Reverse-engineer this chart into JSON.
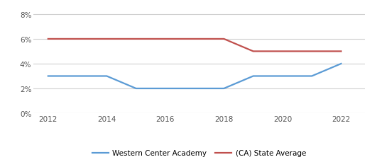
{
  "wca_years": [
    2012,
    2013,
    2014,
    2015,
    2016,
    2017,
    2018,
    2019,
    2020,
    2021,
    2022
  ],
  "wca_values": [
    0.03,
    0.03,
    0.03,
    0.02,
    0.02,
    0.02,
    0.02,
    0.03,
    0.03,
    0.03,
    0.04
  ],
  "ca_years": [
    2012,
    2013,
    2014,
    2015,
    2016,
    2017,
    2018,
    2019,
    2020,
    2021,
    2022
  ],
  "ca_values": [
    0.06,
    0.06,
    0.06,
    0.06,
    0.06,
    0.06,
    0.06,
    0.05,
    0.05,
    0.05,
    0.05
  ],
  "wca_color": "#5b9bd5",
  "ca_color": "#c0504d",
  "wca_label": "Western Center Academy",
  "ca_label": "(CA) State Average",
  "xlim": [
    2011.5,
    2022.8
  ],
  "ylim": [
    0.0,
    0.088
  ],
  "yticks": [
    0.0,
    0.02,
    0.04,
    0.06,
    0.08
  ],
  "xticks": [
    2012,
    2014,
    2016,
    2018,
    2020,
    2022
  ],
  "background_color": "#ffffff",
  "grid_color": "#d0d0d0",
  "line_width": 1.6,
  "legend_fontsize": 7.5,
  "tick_fontsize": 7.5,
  "tick_color": "#555555"
}
